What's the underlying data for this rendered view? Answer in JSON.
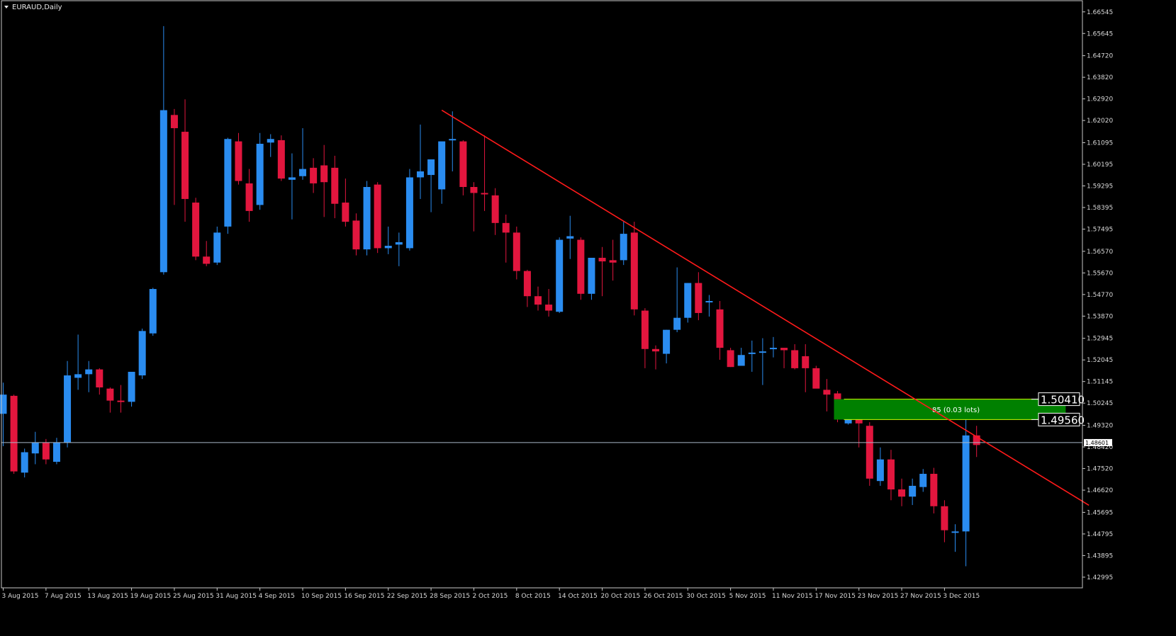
{
  "window": {
    "title": "EURAUD,Daily"
  },
  "colors": {
    "background": "#000000",
    "bull": "#2a8cf0",
    "bear": "#e2163e",
    "trendline": "#ff1a1a",
    "zone_fill": "#008000",
    "zone_border": "#ccff00",
    "current_line": "#a9b8c8",
    "axis_text": "#d8d8d8",
    "frame": "#c8c8c8"
  },
  "chart_data": {
    "type": "candlestick",
    "symbol": "EURAUD",
    "timeframe": "Daily",
    "ylim": [
      1.4255,
      1.6701
    ],
    "y_ticks": [
      "1.66545",
      "1.65645",
      "1.64720",
      "1.63820",
      "1.62920",
      "1.62020",
      "1.61095",
      "1.60195",
      "1.59295",
      "1.58395",
      "1.57495",
      "1.56570",
      "1.55670",
      "1.54770",
      "1.53870",
      "1.52945",
      "1.52045",
      "1.51145",
      "1.50245",
      "1.49320",
      "1.48420",
      "1.47520",
      "1.46620",
      "1.45695",
      "1.44795",
      "1.43895",
      "1.42995"
    ],
    "x_ticks": [
      {
        "label": "3 Aug 2015",
        "index": 0
      },
      {
        "label": "7 Aug 2015",
        "index": 4
      },
      {
        "label": "13 Aug 2015",
        "index": 8
      },
      {
        "label": "19 Aug 2015",
        "index": 12
      },
      {
        "label": "25 Aug 2015",
        "index": 16
      },
      {
        "label": "31 Aug 2015",
        "index": 20
      },
      {
        "label": "4 Sep 2015",
        "index": 24
      },
      {
        "label": "10 Sep 2015",
        "index": 28
      },
      {
        "label": "16 Sep 2015",
        "index": 32
      },
      {
        "label": "22 Sep 2015",
        "index": 36
      },
      {
        "label": "28 Sep 2015",
        "index": 40
      },
      {
        "label": "2 Oct 2015",
        "index": 44
      },
      {
        "label": "8 Oct 2015",
        "index": 48
      },
      {
        "label": "14 Oct 2015",
        "index": 52
      },
      {
        "label": "20 Oct 2015",
        "index": 56
      },
      {
        "label": "26 Oct 2015",
        "index": 60
      },
      {
        "label": "30 Oct 2015",
        "index": 64
      },
      {
        "label": "5 Nov 2015",
        "index": 68
      },
      {
        "label": "11 Nov 2015",
        "index": 72
      },
      {
        "label": "17 Nov 2015",
        "index": 76
      },
      {
        "label": "23 Nov 2015",
        "index": 80
      },
      {
        "label": "27 Nov 2015",
        "index": 84
      },
      {
        "label": "3 Dec 2015",
        "index": 88
      }
    ],
    "current_price": "1.48601",
    "candles": [
      [
        1.498,
        1.511,
        1.4845,
        1.506
      ],
      [
        1.5055,
        1.506,
        1.473,
        1.474
      ],
      [
        1.4735,
        1.4835,
        1.4715,
        1.482
      ],
      [
        1.4815,
        1.4905,
        1.477,
        1.486
      ],
      [
        1.486,
        1.4875,
        1.477,
        1.479
      ],
      [
        1.478,
        1.488,
        1.477,
        1.486
      ],
      [
        1.486,
        1.52,
        1.484,
        1.514
      ],
      [
        1.513,
        1.531,
        1.508,
        1.5145
      ],
      [
        1.5145,
        1.52,
        1.507,
        1.5165
      ],
      [
        1.5165,
        1.517,
        1.506,
        1.509
      ],
      [
        1.5085,
        1.509,
        1.4985,
        1.5035
      ],
      [
        1.5035,
        1.51,
        1.4985,
        1.503
      ],
      [
        1.503,
        1.515,
        1.501,
        1.5155
      ],
      [
        1.514,
        1.5335,
        1.5125,
        1.5325
      ],
      [
        1.5315,
        1.5505,
        1.5305,
        1.55
      ],
      [
        1.557,
        1.6595,
        1.556,
        1.6245
      ],
      [
        1.6225,
        1.625,
        1.585,
        1.617
      ],
      [
        1.6155,
        1.629,
        1.578,
        1.5875
      ],
      [
        1.586,
        1.588,
        1.562,
        1.5635
      ],
      [
        1.5635,
        1.57,
        1.5595,
        1.5605
      ],
      [
        1.561,
        1.576,
        1.56,
        1.5735
      ],
      [
        1.576,
        1.613,
        1.573,
        1.6125
      ],
      [
        1.6115,
        1.615,
        1.5935,
        1.595
      ],
      [
        1.594,
        1.6,
        1.578,
        1.5825
      ],
      [
        1.585,
        1.615,
        1.583,
        1.6105
      ],
      [
        1.611,
        1.6145,
        1.605,
        1.6125
      ],
      [
        1.612,
        1.614,
        1.595,
        1.596
      ],
      [
        1.5955,
        1.6065,
        1.579,
        1.5965
      ],
      [
        1.597,
        1.617,
        1.5955,
        1.6
      ],
      [
        1.6005,
        1.6045,
        1.59,
        1.594
      ],
      [
        1.6015,
        1.61,
        1.58,
        1.5945
      ],
      [
        1.6005,
        1.6055,
        1.5795,
        1.5855
      ],
      [
        1.586,
        1.596,
        1.576,
        1.578
      ],
      [
        1.5785,
        1.5815,
        1.564,
        1.5665
      ],
      [
        1.5665,
        1.595,
        1.564,
        1.5925
      ],
      [
        1.5935,
        1.5945,
        1.565,
        1.567
      ],
      [
        1.567,
        1.576,
        1.5645,
        1.568
      ],
      [
        1.5685,
        1.5735,
        1.5595,
        1.5695
      ],
      [
        1.567,
        1.6,
        1.566,
        1.5965
      ],
      [
        1.5965,
        1.6185,
        1.5875,
        1.599
      ],
      [
        1.5975,
        1.603,
        1.582,
        1.604
      ],
      [
        1.5915,
        1.611,
        1.5855,
        1.6115
      ],
      [
        1.612,
        1.624,
        1.599,
        1.6125
      ],
      [
        1.6115,
        1.612,
        1.589,
        1.5925
      ],
      [
        1.5925,
        1.5945,
        1.574,
        1.59
      ],
      [
        1.59,
        1.614,
        1.5825,
        1.5895
      ],
      [
        1.589,
        1.592,
        1.5725,
        1.5775
      ],
      [
        1.5775,
        1.581,
        1.561,
        1.5735
      ],
      [
        1.5735,
        1.576,
        1.554,
        1.5575
      ],
      [
        1.5575,
        1.558,
        1.5425,
        1.547
      ],
      [
        1.547,
        1.551,
        1.541,
        1.5435
      ],
      [
        1.5435,
        1.55,
        1.5385,
        1.541
      ],
      [
        1.5405,
        1.5715,
        1.54,
        1.5705
      ],
      [
        1.571,
        1.5805,
        1.5625,
        1.572
      ],
      [
        1.5705,
        1.5715,
        1.5455,
        1.548
      ],
      [
        1.548,
        1.5615,
        1.5455,
        1.563
      ],
      [
        1.563,
        1.5675,
        1.547,
        1.5615
      ],
      [
        1.562,
        1.5705,
        1.5535,
        1.561
      ],
      [
        1.562,
        1.578,
        1.56,
        1.573
      ],
      [
        1.5735,
        1.578,
        1.539,
        1.5415
      ],
      [
        1.541,
        1.542,
        1.517,
        1.525
      ],
      [
        1.525,
        1.5265,
        1.5165,
        1.524
      ],
      [
        1.523,
        1.533,
        1.519,
        1.533
      ],
      [
        1.533,
        1.559,
        1.532,
        1.538
      ],
      [
        1.538,
        1.5525,
        1.536,
        1.5525
      ],
      [
        1.5525,
        1.557,
        1.537,
        1.54
      ],
      [
        1.545,
        1.5475,
        1.5385,
        1.545
      ],
      [
        1.5415,
        1.545,
        1.5205,
        1.5255
      ],
      [
        1.5245,
        1.5255,
        1.5175,
        1.5175
      ],
      [
        1.518,
        1.5255,
        1.518,
        1.5225
      ],
      [
        1.523,
        1.5285,
        1.5155,
        1.5235
      ],
      [
        1.5235,
        1.5295,
        1.51,
        1.524
      ],
      [
        1.525,
        1.53,
        1.5215,
        1.5255
      ],
      [
        1.5255,
        1.5255,
        1.517,
        1.5245
      ],
      [
        1.5245,
        1.527,
        1.5165,
        1.517
      ],
      [
        1.522,
        1.527,
        1.507,
        1.517
      ],
      [
        1.517,
        1.518,
        1.51,
        1.5085
      ],
      [
        1.508,
        1.5125,
        1.499,
        1.506
      ],
      [
        1.5065,
        1.5075,
        1.4945,
        1.504
      ],
      [
        1.494,
        1.502,
        1.4935,
        1.4985
      ],
      [
        1.5015,
        1.5015,
        1.484,
        1.494
      ],
      [
        1.493,
        1.4945,
        1.468,
        1.471
      ],
      [
        1.47,
        1.484,
        1.468,
        1.479
      ],
      [
        1.479,
        1.483,
        1.462,
        1.4665
      ],
      [
        1.4665,
        1.471,
        1.4595,
        1.4635
      ],
      [
        1.4635,
        1.471,
        1.46,
        1.468
      ],
      [
        1.4675,
        1.475,
        1.4655,
        1.473
      ],
      [
        1.473,
        1.4755,
        1.4565,
        1.4595
      ],
      [
        1.4595,
        1.462,
        1.4445,
        1.4495
      ],
      [
        1.449,
        1.452,
        1.4405,
        1.449
      ],
      [
        1.449,
        1.496,
        1.4345,
        1.489
      ],
      [
        1.489,
        1.493,
        1.48,
        1.485
      ]
    ],
    "trendline": {
      "start_index": 41,
      "start_price": 1.6245,
      "end_index": 101.5,
      "end_price": 1.4599
    },
    "zone": {
      "start_index": 78,
      "end_index": 99,
      "top": 1.5041,
      "bottom": 1.4956,
      "label": "85 (0.03 lots)"
    },
    "price_tags": [
      "1.50410",
      "1.49560"
    ]
  }
}
